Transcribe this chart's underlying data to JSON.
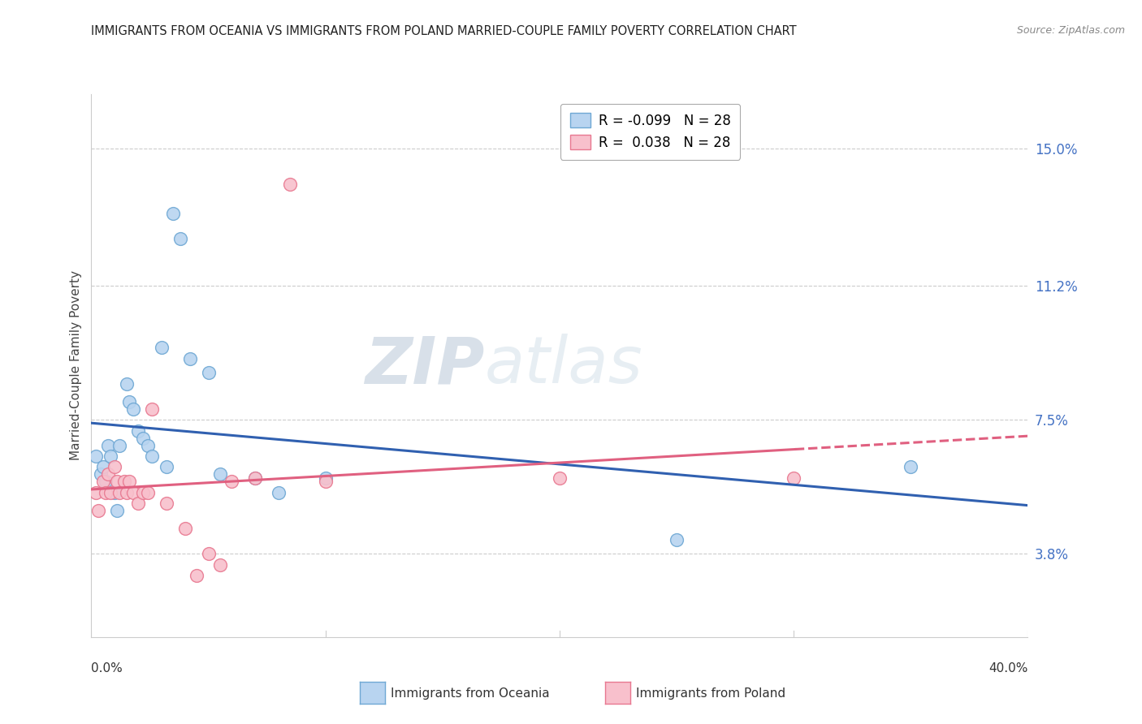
{
  "title": "IMMIGRANTS FROM OCEANIA VS IMMIGRANTS FROM POLAND MARRIED-COUPLE FAMILY POVERTY CORRELATION CHART",
  "source": "Source: ZipAtlas.com",
  "ylabel": "Married-Couple Family Poverty",
  "ytick_values": [
    15.0,
    11.2,
    7.5,
    3.8
  ],
  "xmin": 0.0,
  "xmax": 40.0,
  "ymin": 1.5,
  "ymax": 16.5,
  "legend_label_oceania": "R = -0.099   N = 28",
  "legend_label_poland": "R =  0.038   N = 28",
  "oceania_color_edge": "#6fa8d4",
  "oceania_color_fill": "#b8d4f0",
  "poland_color_edge": "#e87890",
  "poland_color_fill": "#f8c0cc",
  "trend_oceania_color": "#3060b0",
  "trend_poland_color": "#e06080",
  "watermark_zip": "ZIP",
  "watermark_atlas": "atlas",
  "grid_color": "#cccccc",
  "background_color": "#ffffff",
  "oceania_points": [
    [
      0.2,
      6.5
    ],
    [
      0.4,
      6.0
    ],
    [
      0.5,
      6.2
    ],
    [
      0.6,
      5.8
    ],
    [
      0.7,
      6.8
    ],
    [
      0.8,
      6.5
    ],
    [
      1.0,
      5.5
    ],
    [
      1.1,
      5.0
    ],
    [
      1.2,
      6.8
    ],
    [
      1.5,
      8.5
    ],
    [
      1.6,
      8.0
    ],
    [
      1.8,
      7.8
    ],
    [
      2.0,
      7.2
    ],
    [
      2.2,
      7.0
    ],
    [
      2.4,
      6.8
    ],
    [
      2.6,
      6.5
    ],
    [
      3.0,
      9.5
    ],
    [
      3.2,
      6.2
    ],
    [
      3.5,
      13.2
    ],
    [
      3.8,
      12.5
    ],
    [
      4.2,
      9.2
    ],
    [
      5.0,
      8.8
    ],
    [
      5.5,
      6.0
    ],
    [
      7.0,
      5.9
    ],
    [
      8.0,
      5.5
    ],
    [
      10.0,
      5.9
    ],
    [
      25.0,
      4.2
    ],
    [
      35.0,
      6.2
    ]
  ],
  "poland_points": [
    [
      0.2,
      5.5
    ],
    [
      0.3,
      5.0
    ],
    [
      0.5,
      5.8
    ],
    [
      0.6,
      5.5
    ],
    [
      0.7,
      6.0
    ],
    [
      0.8,
      5.5
    ],
    [
      1.0,
      6.2
    ],
    [
      1.1,
      5.8
    ],
    [
      1.2,
      5.5
    ],
    [
      1.4,
      5.8
    ],
    [
      1.5,
      5.5
    ],
    [
      1.6,
      5.8
    ],
    [
      1.8,
      5.5
    ],
    [
      2.0,
      5.2
    ],
    [
      2.2,
      5.5
    ],
    [
      2.4,
      5.5
    ],
    [
      2.6,
      7.8
    ],
    [
      3.2,
      5.2
    ],
    [
      4.0,
      4.5
    ],
    [
      4.5,
      3.2
    ],
    [
      5.0,
      3.8
    ],
    [
      5.5,
      3.5
    ],
    [
      6.0,
      5.8
    ],
    [
      7.0,
      5.9
    ],
    [
      8.5,
      14.0
    ],
    [
      10.0,
      5.8
    ],
    [
      20.0,
      5.9
    ],
    [
      30.0,
      5.9
    ]
  ]
}
